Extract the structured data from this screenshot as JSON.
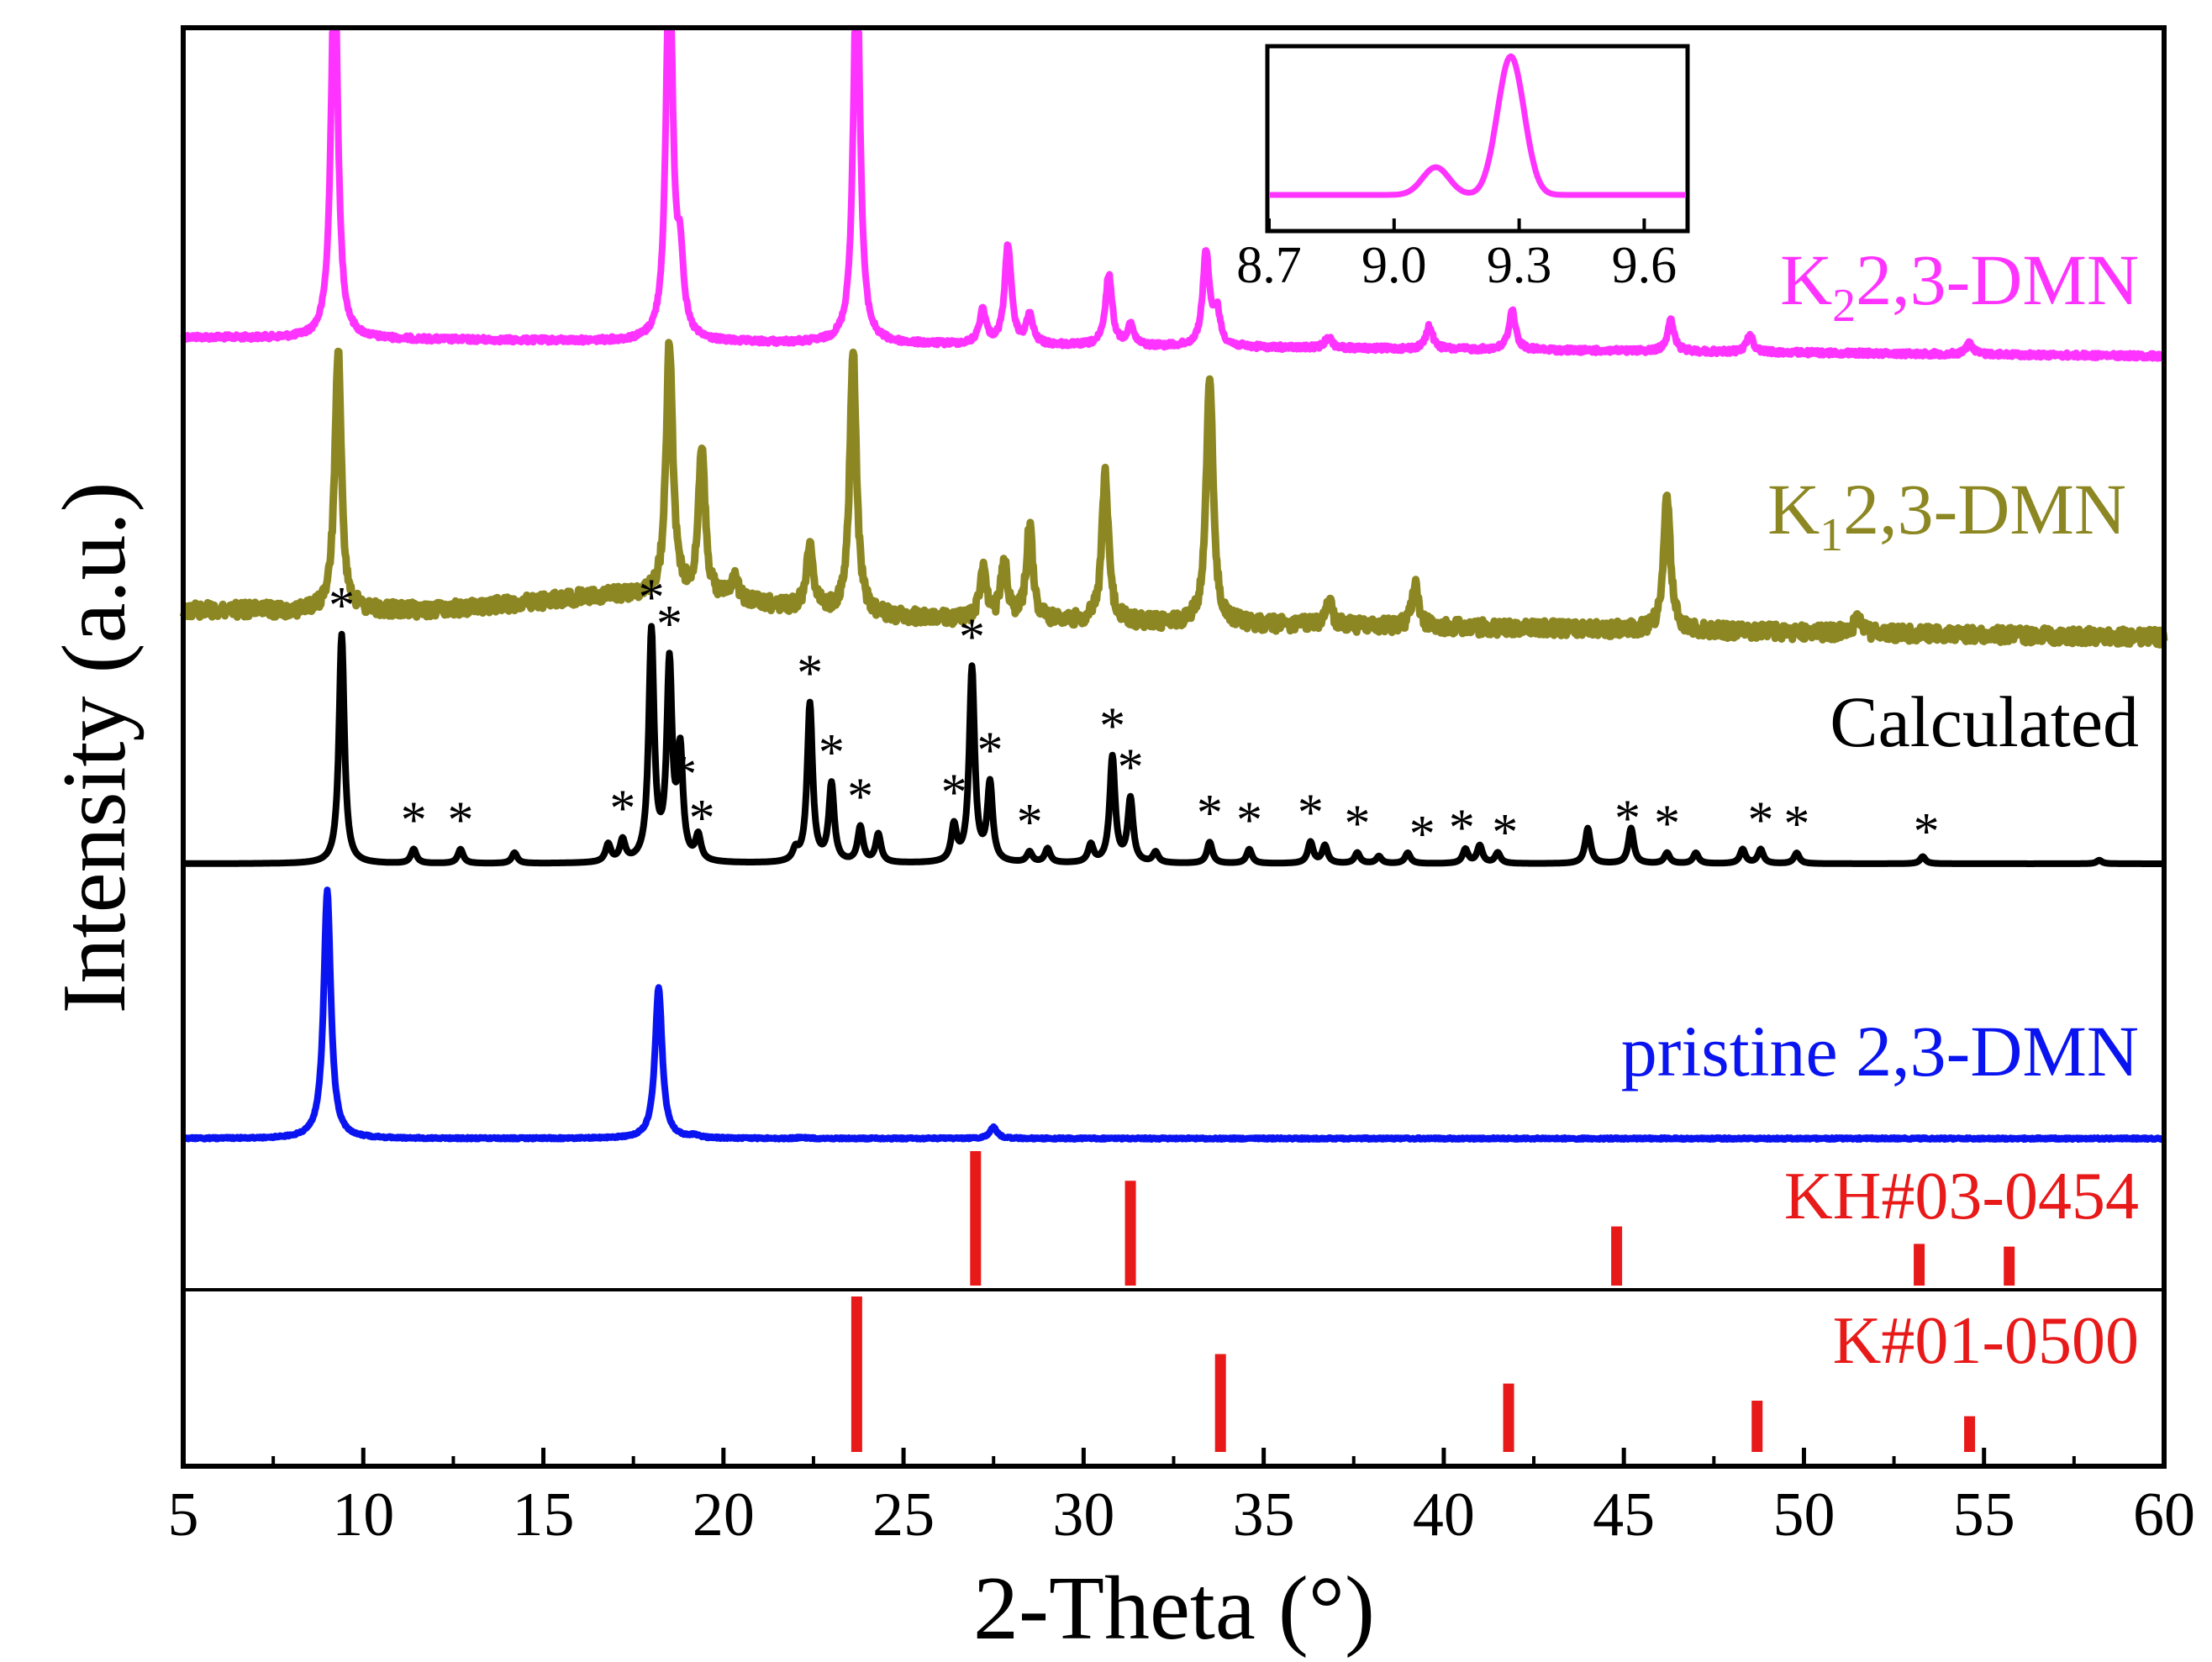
{
  "chart_data": {
    "type": "line",
    "title": "",
    "xlabel": "2-Theta (°)",
    "ylabel": "Intensity (a.u.)",
    "xlim": [
      5,
      60
    ],
    "xticks": [
      5,
      10,
      15,
      20,
      25,
      30,
      35,
      40,
      45,
      50,
      55,
      60
    ],
    "colors": {
      "k2": "#ff33ff",
      "k1": "#8c8722",
      "calculated": "#000000",
      "pristine": "#0a14f0",
      "reference": "#e81919"
    },
    "series": [
      {
        "key": "k2",
        "name": "K",
        "subscript": "2",
        "suffix": "2,3-DMN",
        "baseline": 0.075,
        "peaks": [
          [
            9.2,
            1.4
          ],
          [
            18.5,
            1.4
          ],
          [
            18.8,
            0.25
          ],
          [
            23.7,
            1.4
          ],
          [
            27.2,
            0.12
          ],
          [
            27.9,
            0.35
          ],
          [
            28.5,
            0.1
          ],
          [
            30.7,
            0.25
          ],
          [
            31.3,
            0.07
          ],
          [
            33.4,
            0.33
          ],
          [
            33.7,
            0.12
          ],
          [
            36.8,
            0.04
          ],
          [
            39.6,
            0.08
          ],
          [
            41.9,
            0.14
          ],
          [
            46.3,
            0.11
          ],
          [
            48.5,
            0.06
          ],
          [
            54.6,
            0.04
          ]
        ]
      },
      {
        "key": "k1",
        "name": "K",
        "subscript": "1",
        "suffix": "2,3-DMN",
        "baseline": 0.075,
        "peaks": [
          [
            9.3,
            0.62
          ],
          [
            18.5,
            0.6
          ],
          [
            19.4,
            0.35
          ],
          [
            20.3,
            0.06
          ],
          [
            22.4,
            0.16
          ],
          [
            23.6,
            0.62
          ],
          [
            27.2,
            0.12
          ],
          [
            27.8,
            0.14
          ],
          [
            28.5,
            0.22
          ],
          [
            30.6,
            0.35
          ],
          [
            33.5,
            0.6
          ],
          [
            36.8,
            0.06
          ],
          [
            39.2,
            0.1
          ],
          [
            46.2,
            0.32
          ],
          [
            51.5,
            0.04
          ]
        ]
      },
      {
        "key": "calculated",
        "name": "Calculated",
        "baseline": 0.0,
        "peaks": [
          [
            9.4,
            0.65
          ],
          [
            11.4,
            0.04
          ],
          [
            12.7,
            0.04
          ],
          [
            14.2,
            0.03
          ],
          [
            16.8,
            0.05
          ],
          [
            17.2,
            0.06
          ],
          [
            18.0,
            0.65
          ],
          [
            18.5,
            0.55
          ],
          [
            18.8,
            0.3
          ],
          [
            19.3,
            0.07
          ],
          [
            22.0,
            0.03
          ],
          [
            22.4,
            0.45
          ],
          [
            23.0,
            0.22
          ],
          [
            23.8,
            0.1
          ],
          [
            24.3,
            0.08
          ],
          [
            26.4,
            0.1
          ],
          [
            26.9,
            0.55
          ],
          [
            27.4,
            0.22
          ],
          [
            28.5,
            0.03
          ],
          [
            29.0,
            0.04
          ],
          [
            30.2,
            0.05
          ],
          [
            30.8,
            0.3
          ],
          [
            31.3,
            0.18
          ],
          [
            32.0,
            0.03
          ],
          [
            33.5,
            0.06
          ],
          [
            34.6,
            0.04
          ],
          [
            36.3,
            0.06
          ],
          [
            36.7,
            0.05
          ],
          [
            37.6,
            0.03
          ],
          [
            38.2,
            0.02
          ],
          [
            39.0,
            0.03
          ],
          [
            40.6,
            0.04
          ],
          [
            41.0,
            0.05
          ],
          [
            41.5,
            0.03
          ],
          [
            44.0,
            0.1
          ],
          [
            45.2,
            0.1
          ],
          [
            46.2,
            0.03
          ],
          [
            47.0,
            0.03
          ],
          [
            48.3,
            0.04
          ],
          [
            48.8,
            0.04
          ],
          [
            49.8,
            0.03
          ],
          [
            53.3,
            0.02
          ],
          [
            58.2,
            0.01
          ]
        ]
      },
      {
        "key": "pristine",
        "name": "pristine 2,3-DMN",
        "baseline": 0.0,
        "peaks": [
          [
            9.0,
            0.9
          ],
          [
            18.2,
            0.55
          ],
          [
            19.2,
            0.01
          ],
          [
            22.2,
            0.004
          ],
          [
            27.5,
            0.04
          ]
        ]
      }
    ],
    "calculated_markers": [
      9.4,
      11.4,
      12.7,
      17.2,
      18.0,
      18.5,
      18.9,
      19.4,
      22.4,
      23.0,
      23.8,
      26.4,
      26.9,
      27.4,
      28.5,
      30.8,
      31.3,
      33.5,
      34.6,
      36.3,
      37.6,
      39.4,
      40.5,
      41.7,
      45.1,
      46.2,
      48.8,
      49.8,
      53.4
    ],
    "marker_symbol": "*",
    "reference_patterns": [
      {
        "key": "kh",
        "name": "KH#03-0454",
        "positions": [
          27.0,
          31.3,
          44.8,
          53.2,
          55.7
        ],
        "intensities": [
          1.0,
          0.78,
          0.44,
          0.31,
          0.29
        ]
      },
      {
        "key": "k",
        "name": "K#01-0500",
        "positions": [
          23.7,
          33.8,
          41.8,
          48.7,
          54.6
        ],
        "intensities": [
          1.0,
          0.63,
          0.44,
          0.33,
          0.23
        ]
      }
    ],
    "inset": {
      "xlim": [
        8.7,
        9.7
      ],
      "xticks": [
        "8.7",
        "9.0",
        "9.3",
        "9.6"
      ],
      "series": "k2",
      "peaks": [
        [
          9.1,
          0.2
        ],
        [
          9.28,
          1.0
        ]
      ]
    }
  }
}
